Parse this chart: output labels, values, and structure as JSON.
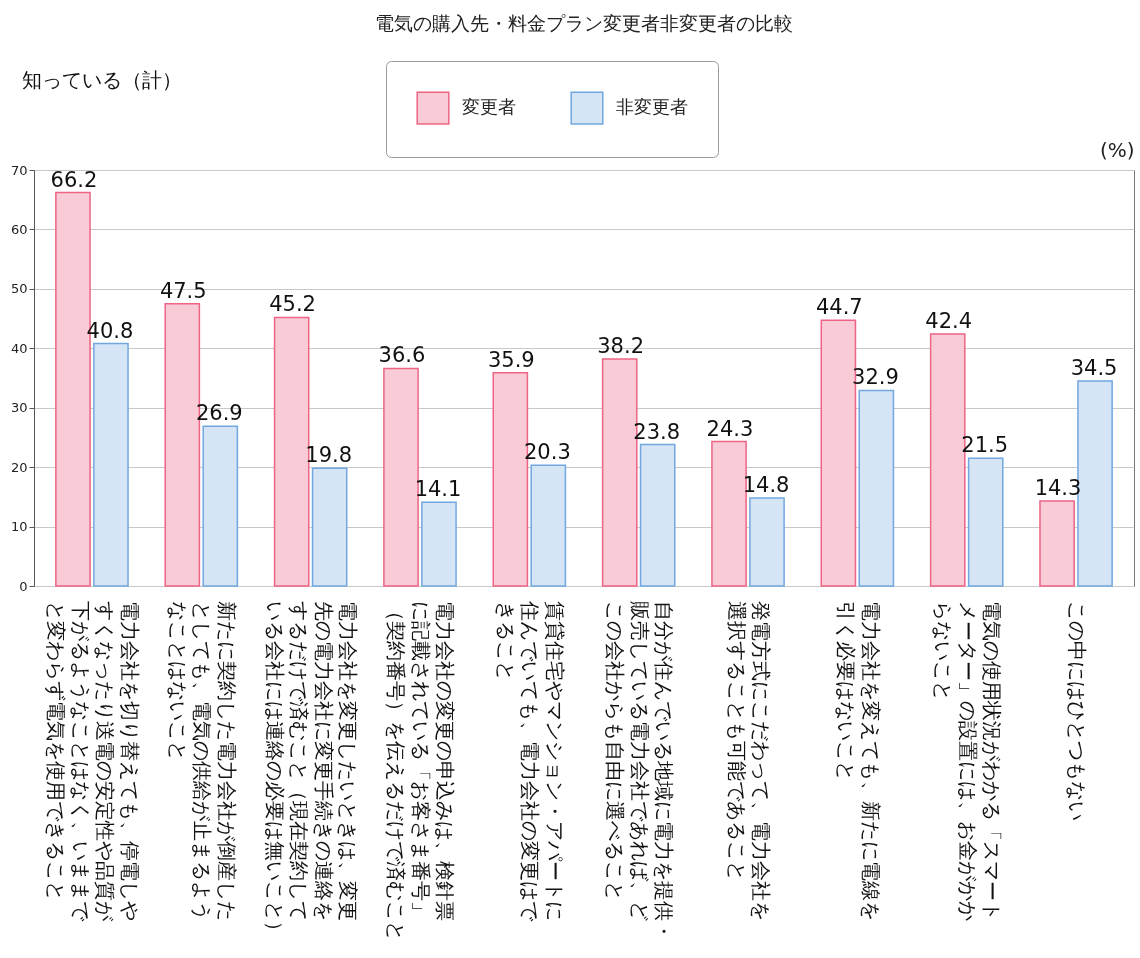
{
  "chart_data": {
    "type": "bar",
    "title": "電気の購入先・料金プラン変更者非変更者の比較",
    "subtitle": "知っている（計）",
    "ylabel": "(%)",
    "categories": [
      "電力会社を切り替えても、停電しやすくなったり送電の安定性や品質が下がるようなことはなく、いままでと変わらず電気を使用できること",
      "新たに契約した電力会社が倒産したとしても、電気の供給が止まるようなことはないこと",
      "電力会社を変更したいときは、変更先の電力会社に変更手続きの連絡をするだけで済むこと（現在契約している会社には連絡の必要は無いこと）",
      "電力会社の変更の申込みは、検針票に記載されている「お客さま番号」（契約番号）を伝えるだけで済むこと",
      "賃貸住宅やマンション・アパートに住んでいても、電力会社の変更はできること",
      "自分が住んでいる地域に電力を提供・販売している電力会社であれば、どこの会社からも自由に選べること",
      "発電方式にこだわって、電力会社を選択することも可能であること",
      "電力会社を変えても、新たに電線を引く必要はないこと",
      "電気の使用状況がわかる「スマートメーター」の設置には、お金がかからないこと",
      "この中にはひとつもない"
    ],
    "series": [
      {
        "name": "変更者",
        "color": "#f9cbd6",
        "values": [
          66.2,
          47.5,
          45.2,
          36.6,
          35.9,
          38.2,
          24.3,
          44.7,
          42.4,
          14.3
        ]
      },
      {
        "name": "非変更者",
        "color": "#d5e5f6",
        "values": [
          40.8,
          26.9,
          19.8,
          14.1,
          20.3,
          23.8,
          14.8,
          32.9,
          21.5,
          34.5
        ]
      }
    ],
    "ylim": [
      0,
      70
    ],
    "yticks": [
      0,
      10,
      20,
      30,
      40,
      50,
      60,
      70
    ],
    "grid": "y",
    "legend": "top",
    "data_labels": true
  }
}
